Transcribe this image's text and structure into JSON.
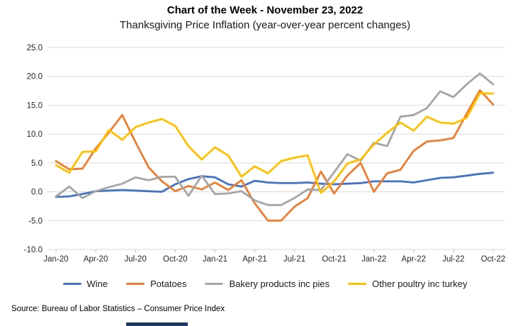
{
  "header": {
    "title": "Chart of the Week - November 23, 2022",
    "subtitle": "Thanksgiving Price Inflation (year-over-year percent changes)"
  },
  "source_note": "Source: Bureau of Labor Statistics – Consumer Price Index",
  "colors": {
    "background": "#FFFFFF",
    "gridline": "#D9D9D9",
    "tick": "#BFBFBF",
    "axis_text": "#262626",
    "title_text": "#000000",
    "bottom_fragment": "#1F3864"
  },
  "chart_data": {
    "type": "line",
    "title": "Chart of the Week - November 23, 2022",
    "subtitle": "Thanksgiving Price Inflation (year-over-year percent changes)",
    "xlabel": "",
    "ylabel": "",
    "ylim": [
      -10,
      25
    ],
    "grid": "horizontal-only",
    "legend_position": "bottom",
    "y_ticks": [
      {
        "value": 25,
        "label": "25.0"
      },
      {
        "value": 20,
        "label": "20.0"
      },
      {
        "value": 15,
        "label": "15.0"
      },
      {
        "value": 10,
        "label": "10.0"
      },
      {
        "value": 5,
        "label": "5.0"
      },
      {
        "value": 0,
        "label": "0.0"
      },
      {
        "value": -5,
        "label": "-5.0"
      },
      {
        "value": -10,
        "label": "-10.0"
      }
    ],
    "categories": [
      "Jan-20",
      "Feb-20",
      "Mar-20",
      "Apr-20",
      "May-20",
      "Jun-20",
      "Jul-20",
      "Aug-20",
      "Sep-20",
      "Oct-20",
      "Nov-20",
      "Dec-20",
      "Jan-21",
      "Feb-21",
      "Mar-21",
      "Apr-21",
      "May-21",
      "Jun-21",
      "Jul-21",
      "Aug-21",
      "Sep-21",
      "Oct-21",
      "Nov-21",
      "Dec-21",
      "Jan-22",
      "Feb-22",
      "Mar-22",
      "Apr-22",
      "May-22",
      "Jun-22",
      "Jul-22",
      "Aug-22",
      "Sep-22",
      "Oct-22"
    ],
    "x_tick_every": 3,
    "series": [
      {
        "name": "Wine",
        "color": "#4472C4",
        "values": [
          -0.9,
          -0.8,
          -0.4,
          0.1,
          0.2,
          0.3,
          0.2,
          0.1,
          0.0,
          1.3,
          2.2,
          2.7,
          2.5,
          1.3,
          0.9,
          1.9,
          1.6,
          1.5,
          1.5,
          1.6,
          1.4,
          1.3,
          1.4,
          1.5,
          1.8,
          1.8,
          1.8,
          1.6,
          2.0,
          2.4,
          2.5,
          2.8,
          3.1,
          3.3
        ]
      },
      {
        "name": "Potatoes",
        "color": "#ED7D31",
        "values": [
          5.3,
          3.9,
          4.0,
          7.5,
          10.3,
          13.3,
          8.6,
          4.2,
          1.8,
          0.1,
          1.0,
          0.4,
          1.6,
          0.3,
          2.0,
          -2.0,
          -5.0,
          -5.0,
          -2.6,
          -1.1,
          3.5,
          -0.3,
          2.8,
          5.0,
          0.0,
          3.2,
          3.8,
          7.1,
          8.7,
          8.9,
          9.3,
          13.5,
          17.6,
          15.1
        ]
      },
      {
        "name": "Bakery products inc pies",
        "color": "#A5A5A5",
        "values": [
          -0.8,
          0.9,
          -1.1,
          0.1,
          0.8,
          1.4,
          2.5,
          2.0,
          2.6,
          2.6,
          -0.7,
          2.8,
          -0.4,
          -0.3,
          0.1,
          -1.5,
          -2.3,
          -2.3,
          -1.1,
          0.4,
          0.3,
          3.4,
          6.5,
          5.4,
          8.5,
          7.9,
          13.0,
          13.3,
          14.5,
          17.4,
          16.4,
          18.6,
          20.5,
          18.6
        ]
      },
      {
        "name": "Other poultry inc turkey",
        "color": "#FFC000",
        "values": [
          4.6,
          3.3,
          6.9,
          7.0,
          10.7,
          9.0,
          11.2,
          12.0,
          12.6,
          11.4,
          7.9,
          5.6,
          7.7,
          6.3,
          2.6,
          4.4,
          3.2,
          5.3,
          5.9,
          6.3,
          -0.2,
          1.8,
          4.9,
          5.6,
          8.2,
          10.2,
          12.0,
          10.6,
          13.0,
          12.0,
          11.8,
          12.8,
          17.1,
          17.0
        ]
      }
    ]
  }
}
